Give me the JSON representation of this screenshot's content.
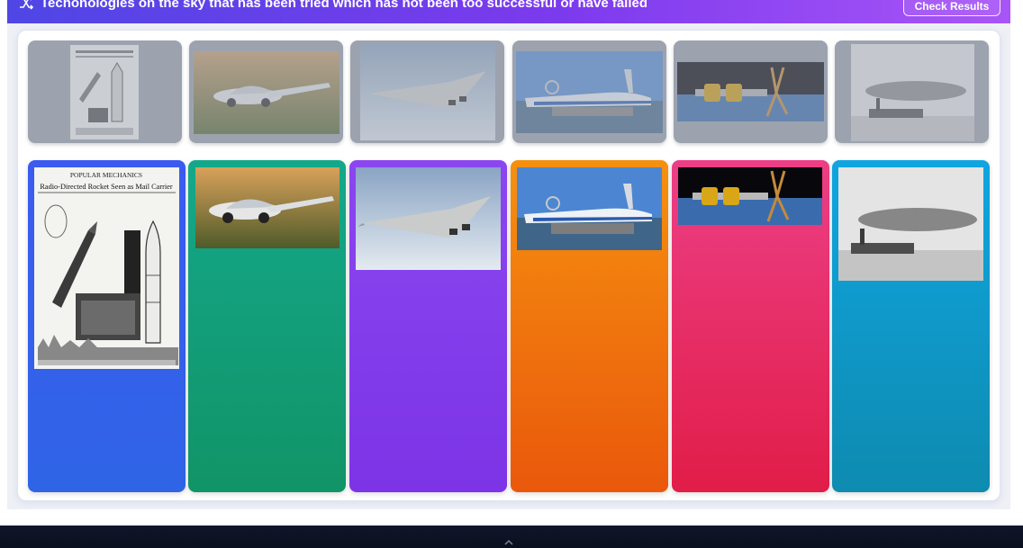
{
  "header": {
    "title": "Techonologies on the sky that has been tried which has not been too successful or have failed",
    "check_button": "Check Results",
    "icon": "shuffle-icon"
  },
  "colors": {
    "header_start": "#4f46e5",
    "header_end": "#a855f7",
    "pool_tile": "#9ca3af",
    "columns": [
      "#3b5bf0",
      "#14a88a",
      "#8b46f0",
      "#f5910f",
      "#ec3f86",
      "#10a5e0"
    ]
  },
  "pool": [
    {
      "image": "rocket-mail-magazine-image"
    },
    {
      "image": "flying-car-image"
    },
    {
      "image": "concorde-jet-image"
    },
    {
      "image": "ekranoplan-image"
    },
    {
      "image": "nuclear-spacecraft-image"
    },
    {
      "image": "zeppelin-airship-image"
    }
  ],
  "columns": [
    {
      "color": "blue",
      "image": "rocket-mail-magazine-image",
      "magazine_masthead": "POPULAR MECHANICS",
      "magazine_headline": "Radio-Directed Rocket Seen as Mail Carrier"
    },
    {
      "color": "green",
      "image": "flying-car-image"
    },
    {
      "color": "purple",
      "image": "concorde-jet-image"
    },
    {
      "color": "orange",
      "image": "ekranoplan-image"
    },
    {
      "color": "pink",
      "image": "nuclear-spacecraft-image"
    },
    {
      "color": "cyan",
      "image": "zeppelin-airship-image"
    }
  ],
  "footer": {
    "icon": "chevron-up-icon"
  }
}
